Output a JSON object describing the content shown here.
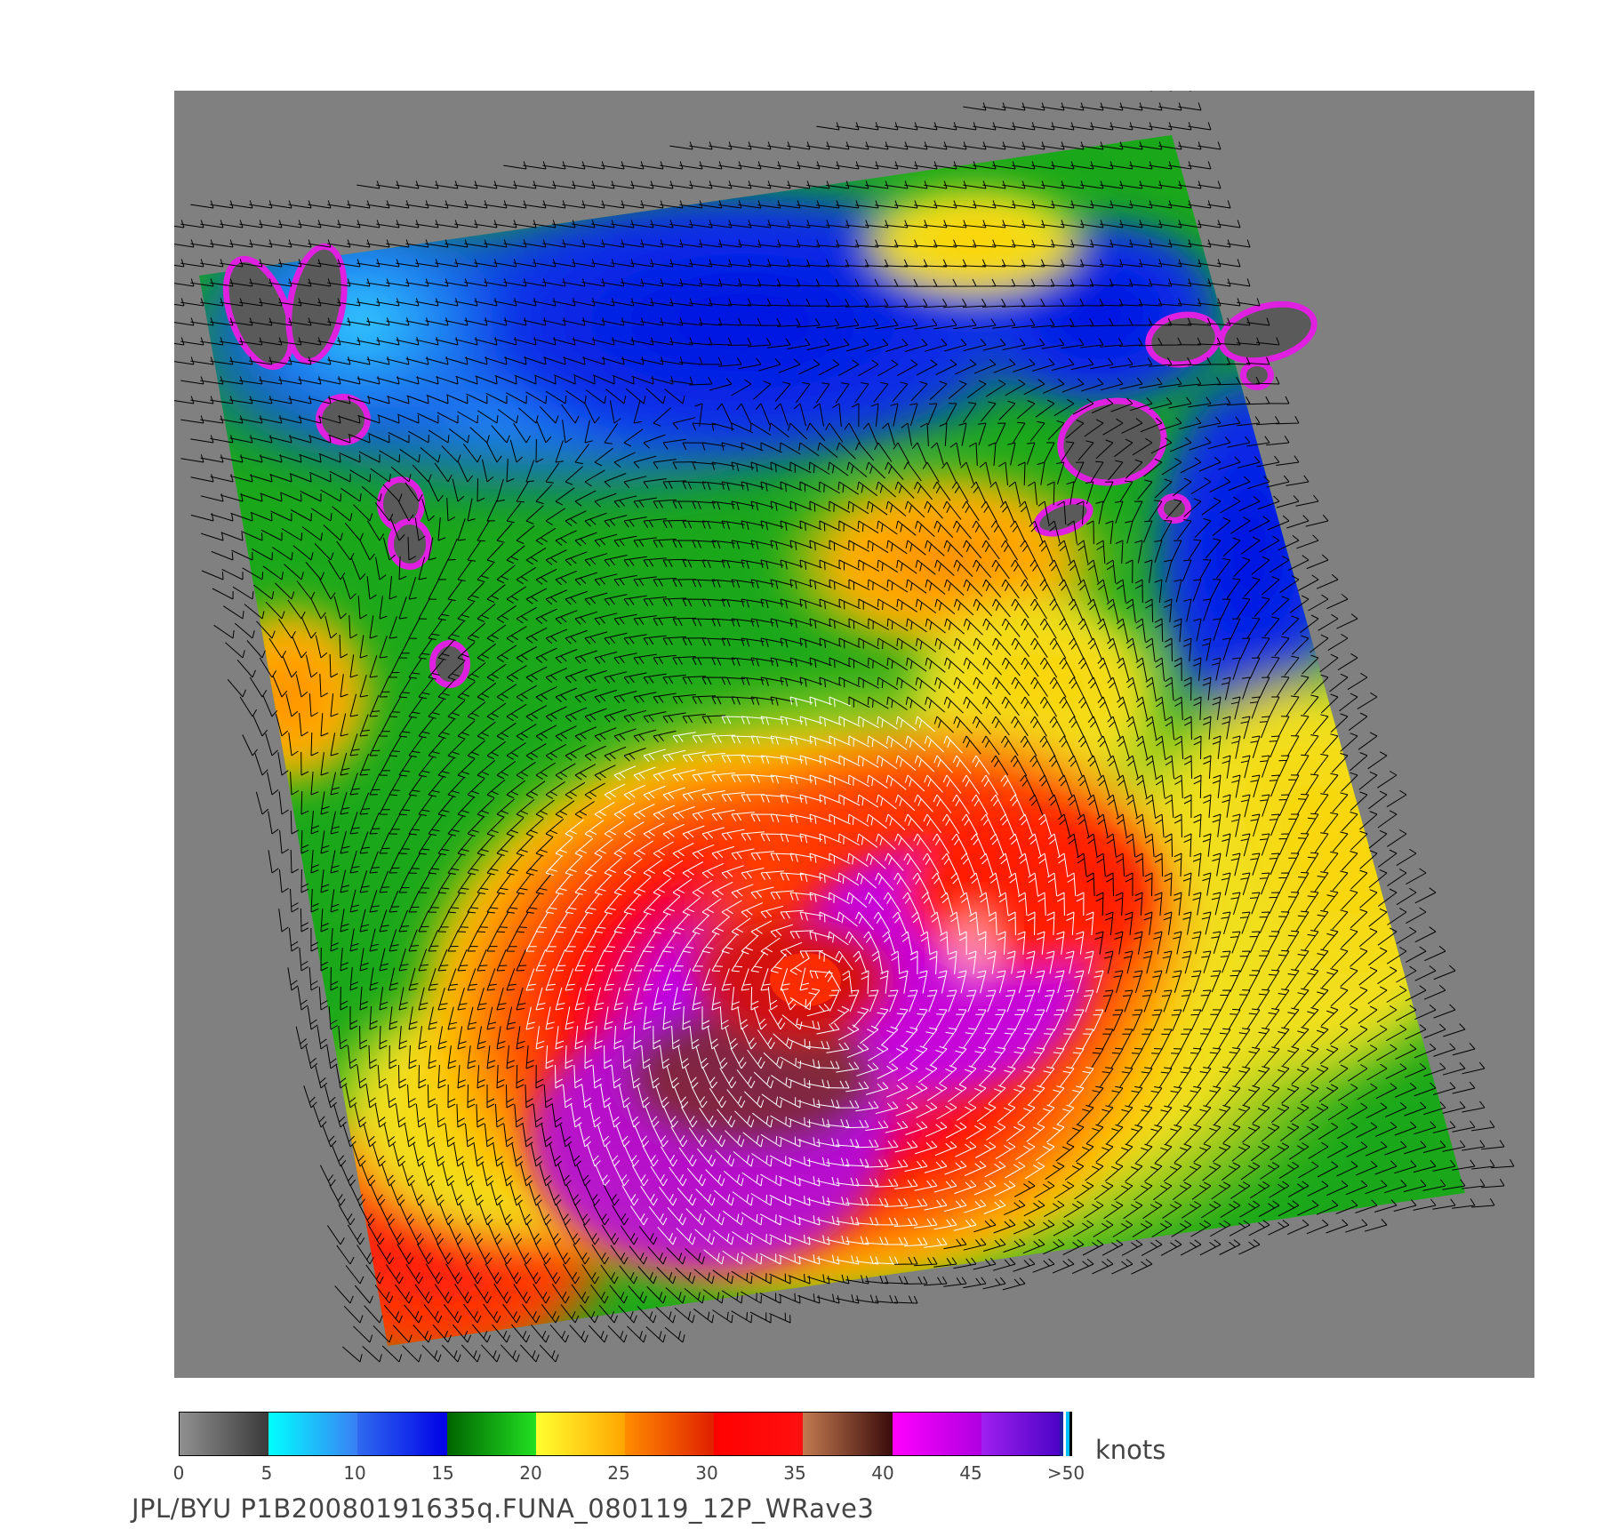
{
  "colorbar": {
    "units": "knots",
    "ticks": [
      "0",
      "5",
      "10",
      "15",
      "20",
      "25",
      "30",
      "35",
      "40",
      "45",
      ">50"
    ],
    "segments": [
      {
        "range": "0-5",
        "from": "#909090",
        "to": "#3a3a3a"
      },
      {
        "range": "5-10",
        "from": "#00ffff",
        "to": "#3a7ff5"
      },
      {
        "range": "10-15",
        "from": "#2f6bf0",
        "to": "#0000e6"
      },
      {
        "range": "15-20",
        "from": "#006400",
        "to": "#22e022"
      },
      {
        "range": "20-25",
        "from": "#ffff30",
        "to": "#ffa500"
      },
      {
        "range": "25-30",
        "from": "#ff8c00",
        "to": "#e02000"
      },
      {
        "range": "30-35",
        "from": "#ff0000",
        "to": "#ff1010"
      },
      {
        "range": "35-40",
        "from": "#c27a50",
        "to": "#3a0c0c"
      },
      {
        "range": "40-45",
        "from": "#ff00ff",
        "to": "#b000e0"
      },
      {
        "range": "45-50",
        "from": "#a020f0",
        "to": "#4000c0"
      }
    ]
  },
  "footer": {
    "source": "JPL/BYU  P1B20080191635q.FUNA_080119_12P_WRave3"
  },
  "map": {
    "background_color": "#808080",
    "no_data_color": "#5a5a5a",
    "barb_color_weak": "#000000",
    "barb_color_strong": "#ffffff",
    "storm_name": "FUNA"
  }
}
